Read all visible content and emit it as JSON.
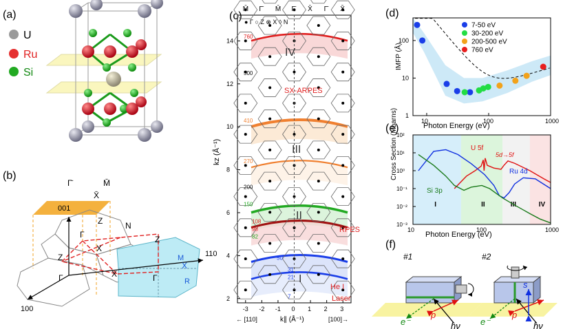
{
  "panels": {
    "a": {
      "label": "(a)",
      "legend": [
        {
          "name": "U",
          "color": "#9a9a9a"
        },
        {
          "name": "Ru",
          "color": "#e53030"
        },
        {
          "name": "Si",
          "color": "#22aa22"
        }
      ]
    },
    "b": {
      "label": "(b)",
      "points": {
        "gamma_bar": "Γ̄",
        "m_bar": "M̄",
        "x_bar": "X̄",
        "z_top": "Z",
        "n": "N",
        "gamma_mid": "Γ",
        "x_mid": "X",
        "z_left": "Z",
        "z_right": "Z",
        "x_left": "X",
        "gamma_left": "Γ",
        "gamma_right": "Γ",
        "x_right": "X",
        "m_right": "M",
        "r_right": "R"
      },
      "axes": {
        "a001": "001",
        "a110": "110",
        "a100": "100"
      },
      "colors": {
        "surface": "#f4b13e",
        "plane": "#bdebf5"
      }
    },
    "c": {
      "label": "(c)",
      "top_labels": [
        "M̄",
        "Γ̄",
        "M̄",
        "Γ̄",
        "X̄",
        "Γ̄",
        "X̄"
      ],
      "legend": "● Γ  ○ Z  ⊗ X  ◊ N",
      "ylabel": "kz (Å⁻¹)",
      "xlabel": "k∥ (Å⁻¹)",
      "x_left_dir": "← [110]",
      "x_right_dir": "[100]→",
      "xticks": [
        "-3",
        "-2",
        "-1",
        "0",
        "1",
        "2",
        "3"
      ],
      "yticks": [
        "2",
        "4",
        "6",
        "8",
        "10",
        "12",
        "14"
      ],
      "region_labels": [
        "IV",
        "III",
        "II",
        "I"
      ],
      "energy_labels": [
        "760",
        "500",
        "410",
        "270",
        "200",
        "150",
        "108",
        "98",
        "82",
        "50",
        "31",
        "21",
        "7"
      ],
      "methods": {
        "sx": "SX-ARPES",
        "rpes": "RPES",
        "hei": "He I",
        "laser": "Laser"
      }
    },
    "d": {
      "label": "(d)",
      "ylabel": "IMFP (Å)",
      "xlabel": "Photon Energy (eV)",
      "yticks": [
        "1",
        "10",
        "100"
      ],
      "xticks": [
        "10",
        "100",
        "1000"
      ],
      "legend": [
        {
          "label": "7-50 eV",
          "color": "#1a3ee8"
        },
        {
          "label": "30-200 eV",
          "color": "#22dd44"
        },
        {
          "label": "200-500 eV",
          "color": "#f2a21b"
        },
        {
          "label": "760 eV",
          "color": "#e81e1e"
        }
      ]
    },
    "e": {
      "label": "(e)",
      "ylabel": "Cross Section (Mbarns)",
      "xlabel": "Photon Energy (eV)",
      "yticks": [
        "10⁻³",
        "10⁻²",
        "10⁻¹",
        "10⁰",
        "10¹",
        "10²"
      ],
      "xticks": [
        "10",
        "100",
        "1000"
      ],
      "curve_labels": {
        "u5f": "U 5f",
        "trans": "5d→5f",
        "ru4d": "Ru 4d",
        "si3p": "Si 3p"
      },
      "regions": [
        "I",
        "II",
        "III",
        "IV"
      ]
    },
    "f": {
      "label": "(f)",
      "configs": [
        {
          "tag": "#1",
          "electron": "e⁻",
          "pol": "p",
          "photon": "hν"
        },
        {
          "tag": "#2",
          "electron": "e⁻",
          "pol": "p",
          "s": "s",
          "photon": "hν"
        }
      ]
    }
  },
  "chart_data": [
    {
      "type": "scatter",
      "title": "(d)",
      "xlabel": "Photon Energy (eV)",
      "ylabel": "IMFP (Å)",
      "xscale": "log",
      "yscale": "log",
      "xlim": [
        6,
        1000
      ],
      "ylim": [
        1,
        400
      ],
      "series": [
        {
          "name": "7-50 eV",
          "x": [
            7,
            8.5,
            21,
            31,
            50
          ],
          "y": [
            260,
            100,
            7,
            4.5,
            4.2
          ]
        },
        {
          "name": "30-200 eV",
          "x": [
            41,
            70,
            82,
            98
          ],
          "y": [
            4.2,
            4.7,
            5.3,
            5.8
          ]
        },
        {
          "name": "200-500 eV",
          "x": [
            150,
            270,
            410
          ],
          "y": [
            6.3,
            8.5,
            11.5
          ]
        },
        {
          "name": "760 eV",
          "x": [
            760
          ],
          "y": [
            20
          ]
        }
      ]
    },
    {
      "type": "line",
      "title": "(e)",
      "xlabel": "Photon Energy (eV)",
      "ylabel": "Cross Section (Mbarns)",
      "xscale": "log",
      "yscale": "log",
      "xlim": [
        10,
        1000
      ],
      "ylim": [
        0.001,
        100
      ],
      "series": [
        {
          "name": "U 5f",
          "x": [
            40,
            60,
            80,
            98,
            105,
            108,
            112,
            120,
            150,
            190,
            210,
            240,
            300,
            500,
            800,
            1000
          ],
          "y": [
            0.1,
            0.5,
            1.0,
            1.8,
            4.0,
            1.0,
            5.0,
            2.0,
            1.4,
            1.2,
            2.0,
            3.5,
            2.6,
            1.0,
            0.35,
            0.22
          ]
        },
        {
          "name": "Ru 4d",
          "x": [
            12,
            20,
            30,
            45,
            70,
            110,
            150,
            180,
            210,
            250,
            300,
            400,
            600,
            1000
          ],
          "y": [
            1.0,
            12,
            15,
            8,
            2.5,
            0.6,
            0.15,
            0.04,
            0.03,
            0.06,
            0.18,
            0.4,
            0.35,
            0.1
          ]
        },
        {
          "name": "Si 3p",
          "x": [
            12,
            20,
            30,
            40,
            55,
            70,
            100,
            130,
            200,
            300,
            500,
            700,
            1000
          ],
          "y": [
            8,
            2.0,
            0.5,
            0.15,
            0.08,
            0.12,
            0.15,
            0.1,
            0.03,
            0.012,
            0.004,
            0.002,
            0.0012
          ]
        }
      ]
    },
    {
      "type": "line",
      "title": "(c)",
      "xlabel": "k∥ (Å⁻¹)",
      "ylabel": "kz (Å⁻¹)",
      "xlim": [
        -3.5,
        3.5
      ],
      "ylim": [
        1.8,
        15.2
      ],
      "series": [
        {
          "name": "760",
          "x": [
            -3.5,
            3.5
          ],
          "y": [
            14.2,
            14.2
          ]
        },
        {
          "name": "410",
          "x": [
            -3.5,
            3.5
          ],
          "y": [
            10.2,
            10.2
          ]
        },
        {
          "name": "270",
          "x": [
            -3.5,
            3.5
          ],
          "y": [
            8.3,
            8.3
          ]
        },
        {
          "name": "150",
          "x": [
            -3.5,
            3.5
          ],
          "y": [
            6.2,
            6.2
          ]
        },
        {
          "name": "108",
          "x": [
            -3.5,
            3.5
          ],
          "y": [
            5.5,
            5.5
          ]
        },
        {
          "name": "50",
          "x": [
            -3.5,
            3.5
          ],
          "y": [
            3.9,
            3.9
          ]
        },
        {
          "name": "21",
          "x": [
            -3.5,
            3.5
          ],
          "y": [
            3.1,
            3.1
          ]
        }
      ]
    }
  ]
}
